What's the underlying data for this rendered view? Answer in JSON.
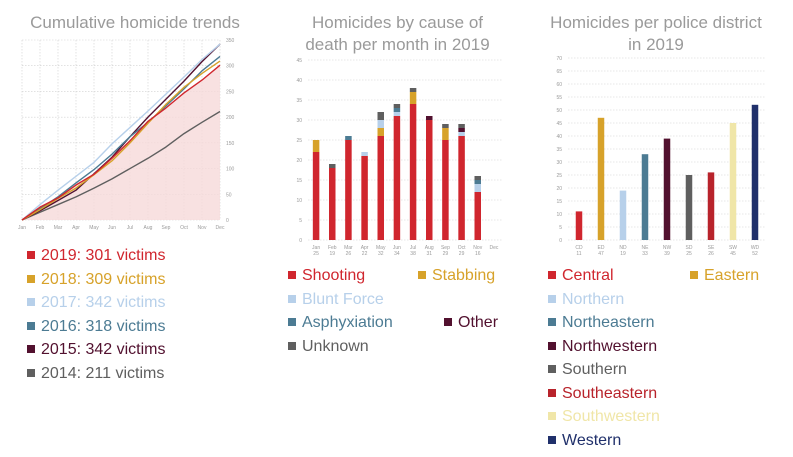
{
  "panel1": {
    "title": "Cumulative homicide trends",
    "legend": [
      {
        "label": "2019: 301 victims",
        "color": "#d0262e"
      },
      {
        "label": "2018: 309 victims",
        "color": "#d7a22a"
      },
      {
        "label": "2017: 342 victims",
        "color": "#b7d0ea"
      },
      {
        "label": "2016: 318 victims",
        "color": "#4c7b93"
      },
      {
        "label": "2015: 342 victims",
        "color": "#52112f"
      },
      {
        "label": "2014: 211 victims",
        "color": "#5f5f5f"
      }
    ]
  },
  "panel2": {
    "title_line1": "Homicides by cause of",
    "title_line2": "death per month in 2019",
    "legend": [
      {
        "label": "Shooting",
        "color": "#d0262e"
      },
      {
        "label": "Stabbing",
        "color": "#d7a22a"
      },
      {
        "label": "Blunt Force",
        "color": "#b7d0ea"
      },
      {
        "label": "Asphyxiation",
        "color": "#4c7b93"
      },
      {
        "label": "Other",
        "color": "#52112f"
      },
      {
        "label": "Unknown",
        "color": "#5f5f5f"
      }
    ]
  },
  "panel3": {
    "title_line1": "Homicides per police district",
    "title_line2": "in 2019",
    "legend": [
      {
        "label": "Central",
        "color": "#d0262e"
      },
      {
        "label": "Eastern",
        "color": "#d7a22a"
      },
      {
        "label": "Northern",
        "color": "#b7d0ea"
      },
      {
        "label": "Northeastern",
        "color": "#4c7b93"
      },
      {
        "label": "Northwestern",
        "color": "#52112f"
      },
      {
        "label": "Southern",
        "color": "#5f5f5f"
      },
      {
        "label": "Southeastern",
        "color": "#b8232b"
      },
      {
        "label": "Southwestern",
        "color": "#f0e6a8"
      },
      {
        "label": "Western",
        "color": "#20306b"
      }
    ]
  },
  "chart_data": [
    {
      "type": "line",
      "title": "Cumulative homicide trends",
      "x": [
        "Jan",
        "Feb",
        "Mar",
        "Apr",
        "May",
        "Jun",
        "Jul",
        "Aug",
        "Sep",
        "Oct",
        "Nov",
        "Dec"
      ],
      "ylim": [
        0,
        350
      ],
      "yticks": [
        0,
        50,
        100,
        150,
        200,
        250,
        300,
        350
      ],
      "series": [
        {
          "name": "2019: 301 victims",
          "color": "#d0262e",
          "values": [
            0,
            25,
            43,
            68,
            89,
            120,
            154,
            192,
            218,
            247,
            272,
            301
          ],
          "fill": "#f6dada"
        },
        {
          "name": "2018: 309 victims",
          "color": "#d7a22a",
          "values": [
            0,
            20,
            42,
            62,
            88,
            115,
            150,
            188,
            225,
            258,
            285,
            309
          ]
        },
        {
          "name": "2017: 342 victims",
          "color": "#b7d0ea",
          "values": [
            0,
            30,
            58,
            85,
            112,
            148,
            180,
            212,
            245,
            278,
            312,
            342
          ]
        },
        {
          "name": "2016: 318 victims",
          "color": "#4c7b93",
          "values": [
            0,
            22,
            45,
            72,
            98,
            128,
            162,
            190,
            222,
            255,
            290,
            318
          ]
        },
        {
          "name": "2015: 342 victims",
          "color": "#52112f",
          "values": [
            0,
            18,
            38,
            58,
            90,
            122,
            162,
            200,
            235,
            270,
            308,
            342
          ]
        },
        {
          "name": "2014: 211 victims",
          "color": "#5f5f5f",
          "values": [
            0,
            15,
            30,
            45,
            62,
            80,
            100,
            120,
            142,
            168,
            190,
            211
          ]
        }
      ]
    },
    {
      "type": "bar",
      "stacked": true,
      "title": "Homicides by cause of death per month in 2019",
      "categories": [
        "Jan",
        "Feb",
        "Mar",
        "Apr",
        "May",
        "Jun",
        "Jul",
        "Aug",
        "Sep",
        "Oct",
        "Nov",
        "Dec"
      ],
      "totals": [
        "25",
        "19",
        "26",
        "22",
        "32",
        "34",
        "38",
        "31",
        "29",
        "29",
        "16",
        ""
      ],
      "ylim": [
        0,
        45
      ],
      "yticks": [
        0,
        5,
        10,
        15,
        20,
        25,
        30,
        35,
        40,
        45
      ],
      "series": [
        {
          "name": "Shooting",
          "color": "#d0262e",
          "values": [
            22,
            18,
            25,
            21,
            26,
            31,
            34,
            30,
            25,
            26,
            12,
            0
          ]
        },
        {
          "name": "Stabbing",
          "color": "#d7a22a",
          "values": [
            3,
            0,
            0,
            0,
            2,
            0,
            3,
            0,
            3,
            0,
            0,
            0
          ]
        },
        {
          "name": "Blunt Force",
          "color": "#b7d0ea",
          "values": [
            0,
            0,
            0,
            1,
            2,
            1,
            0,
            0,
            0,
            1,
            2,
            0
          ]
        },
        {
          "name": "Asphyxiation",
          "color": "#4c7b93",
          "values": [
            0,
            0,
            1,
            0,
            0,
            1,
            0,
            0,
            0,
            0,
            1,
            0
          ]
        },
        {
          "name": "Other",
          "color": "#52112f",
          "values": [
            0,
            0,
            0,
            0,
            0,
            0,
            0,
            1,
            0,
            1,
            0,
            0
          ]
        },
        {
          "name": "Unknown",
          "color": "#5f5f5f",
          "values": [
            0,
            1,
            0,
            0,
            2,
            1,
            1,
            0,
            1,
            1,
            1,
            0
          ]
        }
      ]
    },
    {
      "type": "bar",
      "title": "Homicides per police district in 2019",
      "categories": [
        "CD",
        "ED",
        "ND",
        "NE",
        "NW",
        "SD",
        "SE",
        "SW",
        "WD"
      ],
      "labels": [
        "11",
        "47",
        "19",
        "33",
        "39",
        "25",
        "26",
        "45",
        "52"
      ],
      "values": [
        11,
        47,
        19,
        33,
        39,
        25,
        26,
        45,
        52
      ],
      "colors": [
        "#d0262e",
        "#d7a22a",
        "#b7d0ea",
        "#4c7b93",
        "#52112f",
        "#5f5f5f",
        "#b8232b",
        "#f0e6a8",
        "#20306b"
      ],
      "ylim": [
        0,
        70
      ],
      "yticks": [
        0,
        5,
        10,
        15,
        20,
        25,
        30,
        35,
        40,
        45,
        50,
        55,
        60,
        65,
        70
      ]
    }
  ]
}
